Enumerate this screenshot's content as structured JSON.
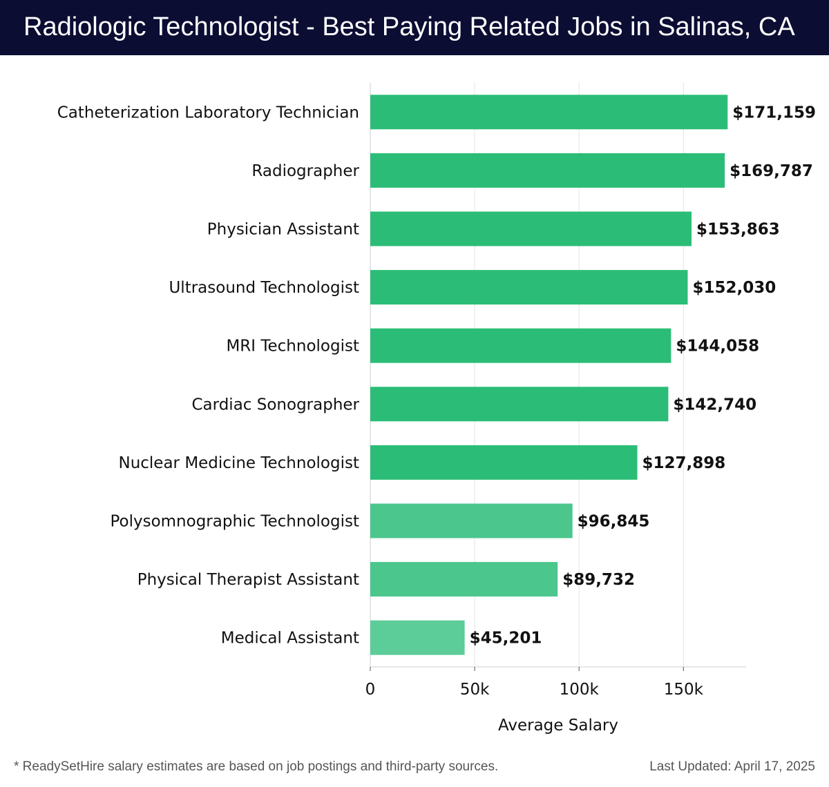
{
  "header": {
    "title": "Radiologic Technologist - Best Paying Related Jobs in Salinas, CA"
  },
  "chart_data": {
    "type": "bar",
    "orientation": "horizontal",
    "categories": [
      "Catheterization Laboratory Technician",
      "Radiographer",
      "Physician Assistant",
      "Ultrasound Technologist",
      "MRI Technologist",
      "Cardiac Sonographer",
      "Nuclear Medicine Technologist",
      "Polysomnographic Technologist",
      "Physical Therapist Assistant",
      "Medical Assistant"
    ],
    "values": [
      171159,
      169787,
      153863,
      152030,
      144058,
      142740,
      127898,
      96845,
      89732,
      45201
    ],
    "value_labels": [
      "$171,159",
      "$169,787",
      "$153,863",
      "$152,030",
      "$144,058",
      "$142,740",
      "$127,898",
      "$96,845",
      "$89,732",
      "$45,201"
    ],
    "bar_colors": [
      "#2bbd77",
      "#2bbd77",
      "#2bbd77",
      "#2bbd77",
      "#2bbd77",
      "#2bbd77",
      "#2bbd77",
      "#4bc68c",
      "#4bc68c",
      "#5ccc98"
    ],
    "xlabel": "Average Salary",
    "ylabel": "",
    "xlim": [
      0,
      180000
    ],
    "xticks": [
      0,
      50000,
      100000,
      150000
    ],
    "xtick_labels": [
      "0",
      "50k",
      "100k",
      "150k"
    ],
    "grid": "vertical"
  },
  "footer": {
    "note": "* ReadySetHire salary estimates are based on job postings and third-party sources.",
    "updated": "Last Updated: April 17, 2025"
  },
  "colors": {
    "header_bg": "#0b0d33",
    "grid": "#e3e3e3"
  }
}
